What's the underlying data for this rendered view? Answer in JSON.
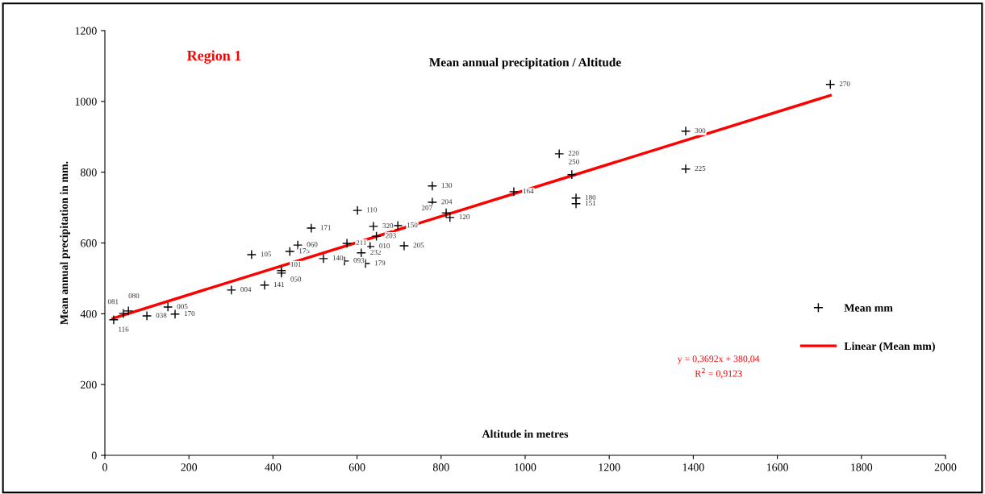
{
  "chart_data": {
    "type": "scatter",
    "title": "Mean annual precipitation / Altitude",
    "xlabel": "Altitude in metres",
    "ylabel": "Mean annual precipitation in mm.",
    "xlim": [
      0,
      2000
    ],
    "xticks": [
      0,
      200,
      400,
      600,
      800,
      1000,
      1200,
      1400,
      1600,
      1800,
      2000
    ],
    "ylim": [
      0,
      1200
    ],
    "yticks": [
      0,
      200,
      400,
      600,
      800,
      1000,
      1200
    ],
    "grid": false,
    "legend": "right",
    "marker": "cross",
    "series": [
      {
        "name": "Mean mm",
        "color": "#000000",
        "x": [
          21,
          44,
          56,
          100,
          150,
          167,
          301,
          380,
          349,
          440,
          459,
          420,
          420,
          491,
          520,
          570,
          620,
          576,
          610,
          631,
          601,
          639,
          697,
          646,
          712,
          779,
          779,
          812,
          821,
          973,
          1121,
          1121,
          1081,
          1111,
          1382,
          1382,
          1726
        ],
        "values": [
          383,
          401,
          408,
          394,
          419,
          399,
          467,
          481,
          567,
          576,
          594,
          522,
          515,
          642,
          556,
          549,
          542,
          599,
          572,
          590,
          692,
          647,
          649,
          619,
          592,
          761,
          715,
          685,
          672,
          745,
          727,
          711,
          852,
          793,
          916,
          809,
          1048
        ]
      },
      {
        "name": "Linear (Mean mm)",
        "type": "line",
        "color": "#ff0000",
        "line_style": "solid",
        "marker": "none",
        "x": [
          19,
          1726
        ],
        "values": [
          387,
          1017
        ]
      }
    ],
    "annotations": [
      "Region 1",
      "y = 0,3692x + 380,04",
      "R$^{2}$ = 0,9123",
      {
        "text": "116",
        "x": 21,
        "y": 383
      },
      {
        "text": "081",
        "x": 44,
        "y": 401
      },
      {
        "text": "080",
        "x": 56,
        "y": 408
      },
      {
        "text": "038",
        "x": 100,
        "y": 394
      },
      {
        "text": "005",
        "x": 150,
        "y": 419
      },
      {
        "text": "170",
        "x": 167,
        "y": 399
      },
      {
        "text": "004",
        "x": 301,
        "y": 467
      },
      {
        "text": "141",
        "x": 380,
        "y": 481
      },
      {
        "text": "105",
        "x": 349,
        "y": 567
      },
      {
        "text": "175",
        "x": 440,
        "y": 576
      },
      {
        "text": "060",
        "x": 459,
        "y": 594
      },
      {
        "text": "101",
        "x": 420,
        "y": 522
      },
      {
        "text": "050",
        "x": 420,
        "y": 515
      },
      {
        "text": "171",
        "x": 491,
        "y": 642
      },
      {
        "text": "140",
        "x": 520,
        "y": 556
      },
      {
        "text": "093",
        "x": 570,
        "y": 549
      },
      {
        "text": "179",
        "x": 620,
        "y": 542
      },
      {
        "text": "211",
        "x": 576,
        "y": 599
      },
      {
        "text": "232",
        "x": 610,
        "y": 572
      },
      {
        "text": "010",
        "x": 631,
        "y": 590
      },
      {
        "text": "110",
        "x": 601,
        "y": 692
      },
      {
        "text": "320",
        "x": 639,
        "y": 647
      },
      {
        "text": "150",
        "x": 697,
        "y": 649
      },
      {
        "text": "203",
        "x": 646,
        "y": 619
      },
      {
        "text": "205",
        "x": 712,
        "y": 592
      },
      {
        "text": "130",
        "x": 779,
        "y": 761
      },
      {
        "text": "204",
        "x": 779,
        "y": 715
      },
      {
        "text": "207",
        "x": 812,
        "y": 685
      },
      {
        "text": "120",
        "x": 821,
        "y": 672
      },
      {
        "text": "164",
        "x": 973,
        "y": 745
      },
      {
        "text": "180",
        "x": 1121,
        "y": 727
      },
      {
        "text": "151",
        "x": 1121,
        "y": 711
      },
      {
        "text": "220",
        "x": 1081,
        "y": 852
      },
      {
        "text": "250",
        "x": 1111,
        "y": 793
      },
      {
        "text": "300",
        "x": 1382,
        "y": 916
      },
      {
        "text": "225",
        "x": 1382,
        "y": 809
      },
      {
        "text": "270",
        "x": 1726,
        "y": 1048
      }
    ]
  }
}
